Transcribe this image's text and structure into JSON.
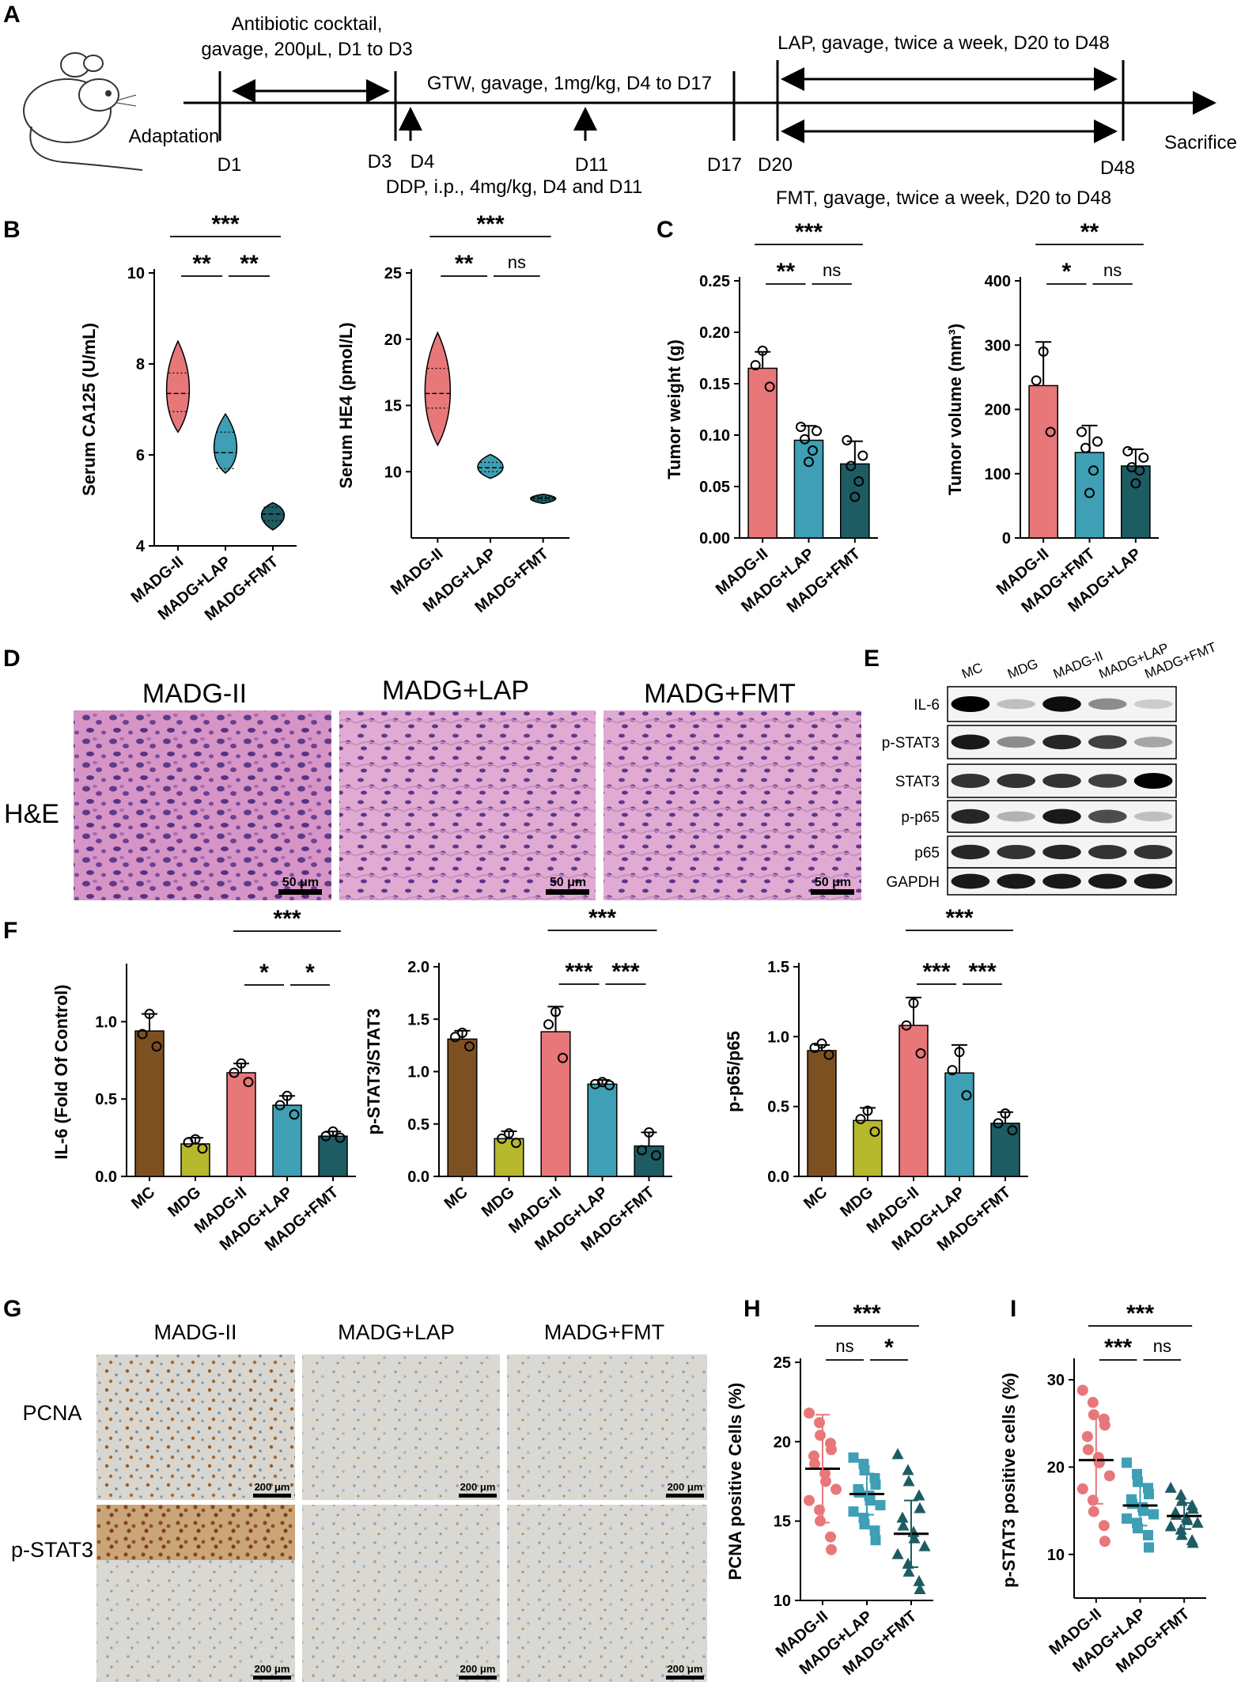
{
  "panel_letters": {
    "A": "A",
    "B": "B",
    "C": "C",
    "D": "D",
    "E": "E",
    "F": "F",
    "G": "G",
    "H": "H",
    "I": "I"
  },
  "timeline": {
    "adaptation": "Adaptation",
    "antibiotic": [
      "Antibiotic cocktail,",
      "gavage, 200μL, D1 to D3"
    ],
    "gtw": "GTW, gavage, 1mg/kg, D4 to D17",
    "ddp": "DDP, i.p., 4mg/kg, D4 and D11",
    "lap": "LAP, gavage, twice a week, D20 to D48",
    "fmt": "FMT, gavage, twice a week, D20 to D48",
    "sacrifice": "Sacrifice",
    "days": [
      "D1",
      "D3",
      "D4",
      "D11",
      "D17",
      "D20",
      "D48"
    ]
  },
  "colors": {
    "red": "#e8777a",
    "blue": "#3e9fb5",
    "dark": "#1d5c62",
    "brown": "#7d5022",
    "olive": "#b6b82e"
  },
  "he": {
    "titles": [
      "MADG-II",
      "MADG+LAP",
      "MADG+FMT"
    ],
    "row_label": "H&E",
    "scale": "50 μm"
  },
  "wb": {
    "lanes": [
      "MC",
      "MDG",
      "MADG-II",
      "MADG+LAP",
      "MADG+FMT"
    ],
    "rows": [
      "IL-6",
      "p-STAT3",
      "STAT3",
      "p-p65",
      "p65",
      "GAPDH"
    ],
    "intensity": [
      [
        1,
        0.25,
        0.95,
        0.45,
        0.2
      ],
      [
        0.9,
        0.45,
        0.85,
        0.75,
        0.35
      ],
      [
        0.8,
        0.8,
        0.8,
        0.75,
        1
      ],
      [
        0.85,
        0.3,
        0.9,
        0.7,
        0.25
      ],
      [
        0.85,
        0.8,
        0.85,
        0.8,
        0.8
      ],
      [
        0.9,
        0.9,
        0.9,
        0.9,
        0.9
      ]
    ]
  },
  "ihc": {
    "titles": [
      "MADG-II",
      "MADG+LAP",
      "MADG+FMT"
    ],
    "rows": [
      "PCNA",
      "p-STAT3"
    ],
    "scale": "200 μm"
  },
  "chart_data": [
    {
      "id": "B1",
      "type": "violin",
      "categories": [
        "MADG-II",
        "MADG+LAP",
        "MADG+FMT"
      ],
      "ylabel": "Serum CA125 (U/mL)",
      "ylim": [
        4,
        10
      ],
      "yticks": [
        4,
        6,
        8,
        10
      ],
      "violins": [
        {
          "min": 6.5,
          "max": 8.5,
          "median": 7.35,
          "q1": 6.95,
          "q3": 7.8
        },
        {
          "min": 5.6,
          "max": 6.9,
          "median": 6.05,
          "q1": 5.7,
          "q3": 6.5
        },
        {
          "min": 4.35,
          "max": 4.95,
          "median": 4.7,
          "q1": 4.55,
          "q3": 4.85
        }
      ],
      "sig": [
        {
          "a": 0,
          "b": 2,
          "label": "***"
        },
        {
          "a": 0,
          "b": 1,
          "label": "**"
        },
        {
          "a": 1,
          "b": 2,
          "label": "**"
        }
      ]
    },
    {
      "id": "B2",
      "type": "violin",
      "categories": [
        "MADG-II",
        "MADG+LAP",
        "MADG+FMT"
      ],
      "ylabel": "Serum HE4 (pmol/L)",
      "ylim": [
        5,
        25
      ],
      "yticks": [
        10,
        15,
        20,
        25
      ],
      "violins": [
        {
          "min": 12,
          "max": 20.5,
          "median": 15.9,
          "q1": 14.8,
          "q3": 17.8
        },
        {
          "min": 9.5,
          "max": 11.3,
          "median": 10.3,
          "q1": 10.0,
          "q3": 10.7
        },
        {
          "min": 7.6,
          "max": 8.3,
          "median": 8.0,
          "q1": 7.85,
          "q3": 8.1
        }
      ],
      "sig": [
        {
          "a": 0,
          "b": 2,
          "label": "***"
        },
        {
          "a": 0,
          "b": 1,
          "label": "**"
        },
        {
          "a": 1,
          "b": 2,
          "label": "ns"
        }
      ]
    },
    {
      "id": "C1",
      "type": "bar",
      "categories": [
        "MADG-II",
        "MADG+LAP",
        "MADG+FMT"
      ],
      "ylabel": "Tumor weight (g)",
      "ylim": [
        0,
        0.25
      ],
      "yticks": [
        0,
        0.05,
        0.1,
        0.15,
        0.2,
        0.25
      ],
      "ytick_labels": [
        "0.00",
        "0.05",
        "0.10",
        "0.15",
        "0.20",
        "0.25"
      ],
      "values": [
        0.165,
        0.095,
        0.072
      ],
      "errors": [
        0.016,
        0.014,
        0.022
      ],
      "points": [
        [
          0.182,
          0.168,
          0.147
        ],
        [
          0.108,
          0.104,
          0.096,
          0.085,
          0.074
        ],
        [
          0.095,
          0.08,
          0.07,
          0.055,
          0.04
        ]
      ],
      "sig": [
        {
          "a": 0,
          "b": 2,
          "label": "***"
        },
        {
          "a": 0,
          "b": 1,
          "label": "**"
        },
        {
          "a": 1,
          "b": 2,
          "label": "ns"
        }
      ]
    },
    {
      "id": "C2",
      "type": "bar",
      "categories": [
        "MADG-II",
        "MADG+FMT",
        "MADG+LAP"
      ],
      "ylabel": "Tumor volume (mm³)",
      "ylim": [
        0,
        400
      ],
      "yticks": [
        0,
        100,
        200,
        300,
        400
      ],
      "values": [
        237,
        133,
        112
      ],
      "errors": [
        68,
        42,
        26
      ],
      "points": [
        [
          290,
          245,
          165
        ],
        [
          165,
          150,
          140,
          105,
          70
        ],
        [
          135,
          125,
          110,
          105,
          85
        ]
      ],
      "sig": [
        {
          "a": 0,
          "b": 2,
          "label": "**"
        },
        {
          "a": 0,
          "b": 1,
          "label": "*"
        },
        {
          "a": 1,
          "b": 2,
          "label": "ns"
        }
      ]
    },
    {
      "id": "F1",
      "type": "bar",
      "categories": [
        "MC",
        "MDG",
        "MADG-II",
        "MADG+LAP",
        "MADG+FMT"
      ],
      "ylabel": "IL-6 (Fold Of Control)",
      "ylim": [
        0,
        1.35
      ],
      "yticks": [
        0,
        0.5,
        1.0
      ],
      "ytick_labels": [
        "0.0",
        "0.5",
        "1.0"
      ],
      "values": [
        0.94,
        0.21,
        0.67,
        0.46,
        0.26
      ],
      "errors": [
        0.11,
        0.04,
        0.06,
        0.06,
        0.03
      ],
      "points": [
        [
          1.05,
          0.92,
          0.84
        ],
        [
          0.24,
          0.22,
          0.18
        ],
        [
          0.73,
          0.67,
          0.61
        ],
        [
          0.52,
          0.46,
          0.4
        ],
        [
          0.29,
          0.26,
          0.25
        ]
      ],
      "sig": [
        {
          "a": 2,
          "b": 4,
          "label": "***"
        },
        {
          "a": 2,
          "b": 3,
          "label": "*"
        },
        {
          "a": 3,
          "b": 4,
          "label": "*"
        }
      ]
    },
    {
      "id": "F2",
      "type": "bar",
      "categories": [
        "MC",
        "MDG",
        "MADG-II",
        "MADG+LAP",
        "MADG+FMT"
      ],
      "ylabel": "p-STAT3/STAT3",
      "ylim": [
        0,
        2.0
      ],
      "yticks": [
        0,
        0.5,
        1.0,
        1.5,
        2.0
      ],
      "ytick_labels": [
        "0.0",
        "0.5",
        "1.0",
        "1.5",
        "2.0"
      ],
      "values": [
        1.31,
        0.36,
        1.38,
        0.88,
        0.29
      ],
      "errors": [
        0.08,
        0.07,
        0.24,
        0.04,
        0.13
      ],
      "points": [
        [
          1.37,
          1.33,
          1.24
        ],
        [
          0.41,
          0.36,
          0.32
        ],
        [
          1.57,
          1.45,
          1.13
        ],
        [
          0.9,
          0.88,
          0.87
        ],
        [
          0.42,
          0.25,
          0.2
        ]
      ],
      "sig": [
        {
          "a": 2,
          "b": 4,
          "label": "***"
        },
        {
          "a": 2,
          "b": 3,
          "label": "***"
        },
        {
          "a": 3,
          "b": 4,
          "label": "***"
        }
      ]
    },
    {
      "id": "F3",
      "type": "bar",
      "categories": [
        "MC",
        "MDG",
        "MADG-II",
        "MADG+LAP",
        "MADG+FMT"
      ],
      "ylabel": "p-p65/p65",
      "ylim": [
        0,
        1.5
      ],
      "yticks": [
        0,
        0.5,
        1.0,
        1.5
      ],
      "ytick_labels": [
        "0.0",
        "0.5",
        "1.0",
        "1.5"
      ],
      "values": [
        0.9,
        0.4,
        1.08,
        0.74,
        0.38
      ],
      "errors": [
        0.04,
        0.09,
        0.2,
        0.2,
        0.08
      ],
      "points": [
        [
          0.95,
          0.92,
          0.87
        ],
        [
          0.47,
          0.41,
          0.32
        ],
        [
          1.24,
          1.08,
          0.88
        ],
        [
          0.89,
          0.76,
          0.58
        ],
        [
          0.45,
          0.38,
          0.33
        ]
      ],
      "sig": [
        {
          "a": 2,
          "b": 4,
          "label": "***"
        },
        {
          "a": 2,
          "b": 3,
          "label": "***"
        },
        {
          "a": 3,
          "b": 4,
          "label": "***"
        }
      ]
    },
    {
      "id": "H",
      "type": "scatter",
      "categories": [
        "MADG-II",
        "MADG+LAP",
        "MADG+FMT"
      ],
      "ylabel": "PCNA positive Cells (%)",
      "ylim": [
        10,
        25
      ],
      "yticks": [
        10,
        15,
        20,
        25
      ],
      "means": [
        18.3,
        16.7,
        14.2
      ],
      "sds": [
        3.4,
        1.3,
        2.1
      ],
      "markers": [
        "circle",
        "square",
        "triangle"
      ],
      "points": [
        [
          21.8,
          21.2,
          20.4,
          19.9,
          19.5,
          19.1,
          18.6,
          18.0,
          17.5,
          17.0,
          16.3,
          15.7,
          15.0,
          14.0,
          13.2
        ],
        [
          19.0,
          18.6,
          18.2,
          17.7,
          17.3,
          17.0,
          16.8,
          16.6,
          16.3,
          16.0,
          15.6,
          15.2,
          14.8,
          14.4,
          13.8
        ],
        [
          19.2,
          18.2,
          17.5,
          16.6,
          15.8,
          15.2,
          14.7,
          14.3,
          13.9,
          13.4,
          12.9,
          12.3,
          11.8,
          11.2,
          10.7
        ]
      ],
      "sig": [
        {
          "a": 0,
          "b": 2,
          "label": "***"
        },
        {
          "a": 0,
          "b": 1,
          "label": "ns"
        },
        {
          "a": 1,
          "b": 2,
          "label": "*"
        }
      ]
    },
    {
      "id": "I",
      "type": "scatter",
      "categories": [
        "MADG-II",
        "MADG+LAP",
        "MADG+FMT"
      ],
      "ylabel": "p-STAT3 positive cells (%)",
      "ylim": [
        5,
        32
      ],
      "yticks": [
        10,
        20,
        30
      ],
      "means": [
        20.8,
        15.6,
        14.4
      ],
      "sds": [
        5.0,
        2.3,
        1.5
      ],
      "markers": [
        "circle",
        "square",
        "triangle"
      ],
      "points": [
        [
          28.8,
          27.4,
          26.0,
          25.5,
          24.8,
          23.5,
          22.0,
          21.1,
          20.5,
          19.0,
          17.5,
          16.2,
          14.9,
          13.3,
          11.5
        ],
        [
          20.5,
          19.2,
          18.3,
          17.6,
          16.9,
          16.3,
          15.8,
          15.4,
          15.0,
          14.6,
          14.1,
          13.6,
          13.0,
          12.2,
          10.8
        ],
        [
          17.6,
          16.8,
          16.1,
          15.6,
          15.2,
          14.8,
          14.5,
          14.2,
          13.9,
          13.6,
          13.2,
          12.8,
          12.2,
          11.6,
          11.3
        ]
      ],
      "sig": [
        {
          "a": 0,
          "b": 2,
          "label": "***"
        },
        {
          "a": 0,
          "b": 1,
          "label": "***"
        },
        {
          "a": 1,
          "b": 2,
          "label": "ns"
        }
      ]
    }
  ]
}
